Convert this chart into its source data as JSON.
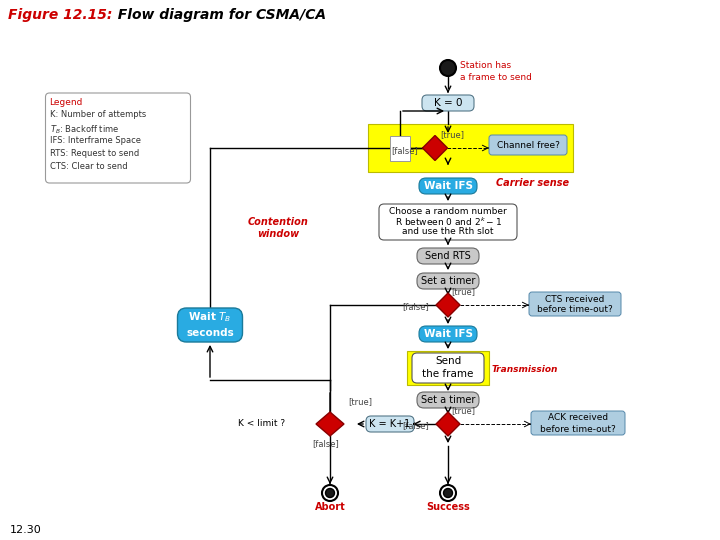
{
  "title_part1": "Figure 12.15:",
  "title_part2": "  Flow diagram for CSMA/CA",
  "page_number": "12.30",
  "bg_color": "#ffffff",
  "colors": {
    "blue_box": "#29ABE2",
    "yellow_box": "#FFFF00",
    "light_blue_note": "#aecde0",
    "red_diamond": "#CC0000",
    "gray_box": "#C8C8C8",
    "dark_circle": "#1a1a1a",
    "red_text": "#CC0000",
    "black": "#000000"
  },
  "legend_lines": [
    "K: Number of attempts",
    "T_B: Backoff time",
    "IFS: Interframe Space",
    "RTS: Request to send",
    "CTS: Clear to send"
  ]
}
